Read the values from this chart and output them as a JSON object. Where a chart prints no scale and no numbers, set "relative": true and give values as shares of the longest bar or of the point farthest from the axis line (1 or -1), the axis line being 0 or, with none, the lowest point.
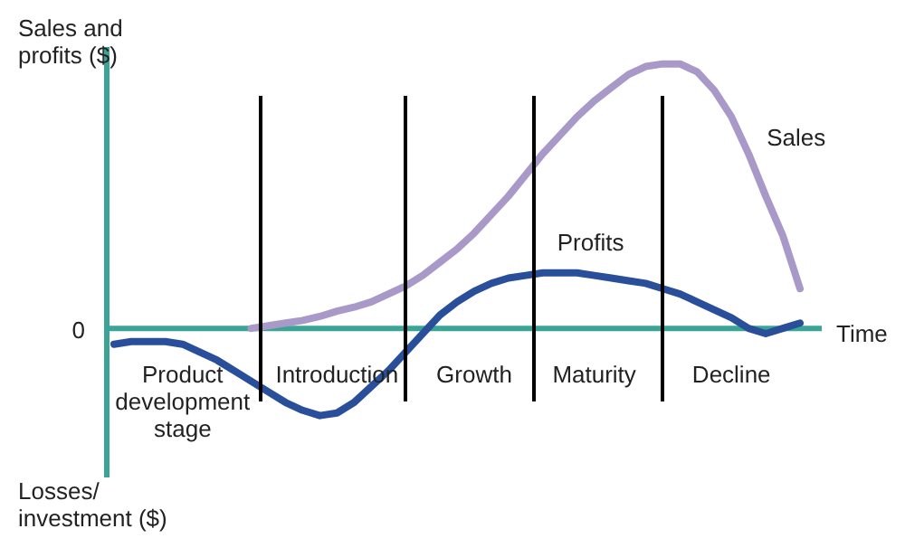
{
  "chart_data": {
    "type": "line",
    "relative": true,
    "ylabel": "Sales and profits ($)",
    "xlabel": "Time",
    "legend": false,
    "marker": "none",
    "line_style": "solid",
    "categories": [
      null,
      null,
      null,
      null,
      "Product development stage",
      null,
      null,
      null,
      null,
      null,
      null,
      null,
      null,
      "Introduction",
      null,
      null,
      null,
      null,
      null,
      null,
      null,
      "Growth",
      null,
      null,
      null,
      null,
      null,
      null,
      "Maturity",
      null,
      null,
      null,
      null,
      null,
      null,
      null,
      "Decline",
      null,
      null,
      null,
      null
    ],
    "series": [
      {
        "name": "Sales",
        "color": "#a899c8",
        "values": [
          null,
          null,
          null,
          null,
          null,
          null,
          null,
          null,
          0,
          0.01,
          0.02,
          0.03,
          0.045,
          0.065,
          0.08,
          0.1,
          0.13,
          0.16,
          0.2,
          0.25,
          0.3,
          0.36,
          0.43,
          0.5,
          0.58,
          0.66,
          0.73,
          0.8,
          0.86,
          0.91,
          0.96,
          0.99,
          1,
          1,
          0.97,
          0.9,
          0.8,
          0.66,
          0.5,
          0.35,
          0.15
        ]
      },
      {
        "name": "Profits",
        "color": "#2a4f9a",
        "values": [
          -0.06,
          -0.05,
          -0.05,
          -0.05,
          -0.06,
          -0.09,
          -0.12,
          -0.16,
          -0.2,
          -0.24,
          -0.28,
          -0.31,
          -0.33,
          -0.32,
          -0.28,
          -0.22,
          -0.16,
          -0.09,
          -0.02,
          0.05,
          0.1,
          0.14,
          0.17,
          0.19,
          0.2,
          0.21,
          0.21,
          0.21,
          0.2,
          0.19,
          0.18,
          0.17,
          0.15,
          0.13,
          0.1,
          0.07,
          0.04,
          0,
          -0.02,
          0,
          0.02
        ]
      }
    ],
    "annotations": [
      "0",
      "Losses/ investment ($)"
    ]
  }
}
